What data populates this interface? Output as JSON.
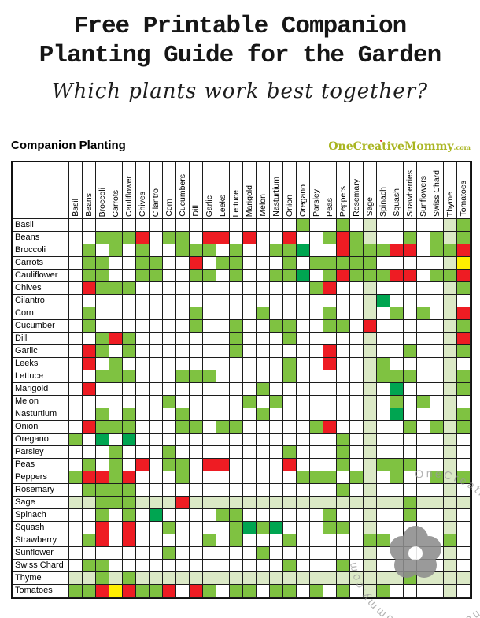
{
  "header": {
    "title_line1": "Free Printable Companion",
    "title_line2": "Planting Guide for the Garden",
    "subtitle": "Which plants work best together?",
    "section_label": "Companion Planting",
    "logo": {
      "name": "OneCreativeMommy",
      "tld": ".com"
    }
  },
  "watermark_text": "OneCreativeMommy.com",
  "chart_data": {
    "type": "heatmap",
    "title": "Companion Planting",
    "legend_position": "none",
    "grid": true,
    "columns": [
      "Basil",
      "Beans",
      "Broccoli",
      "Carrots",
      "Cauliflower",
      "Chives",
      "Cilantro",
      "Corn",
      "Cucumbers",
      "Dill",
      "Garlic",
      "Leeks",
      "Lettuce",
      "Marigold",
      "Melon",
      "Nasturtium",
      "Onion",
      "Oregano",
      "Parsley",
      "Peas",
      "Peppers",
      "Rosemary",
      "Sage",
      "Spinach",
      "Squash",
      "Strawberries",
      "Sunflowers",
      "Swiss Chard",
      "Thyme",
      "Tomatoes"
    ],
    "rows": [
      "Basil",
      "Beans",
      "Broccoli",
      "Carrots",
      "Cauliflower",
      "Chives",
      "Cilantro",
      "Corn",
      "Cucumber",
      "Dill",
      "Garlic",
      "Leeks",
      "Lettuce",
      "Marigold",
      "Melon",
      "Nasturtium",
      "Onion",
      "Oregano",
      "Parsley",
      "Peas",
      "Peppers",
      "Rosemary",
      "Sage",
      "Spinach",
      "Squash",
      "Strawberry",
      "Sunflower",
      "Swiss Chard",
      "Thyme",
      "Tomatoes"
    ],
    "cell_colors": {
      ".": "#ffffff",
      "G": "#7fc241",
      "L": "#dbe9c6",
      "R": "#ee1c23",
      "T": "#00a551",
      "Y": "#ffef00"
    },
    "matrix": [
      ".................G..G.L.....LG",
      "..GGGR.GG.RR.R..R..GRGL..G.GLG",
      ".G.G.G..GGG.G..GGT..RGGGRR.GGR",
      ".GG..GG..R.GG...G.GGGGG.....LY",
      ".GG..GG..GG.G..GGT.GRGGGRR.GGR",
      ".RGGG.............GR..L.....LG",
      "......................LT....L.",
      ".G.......G....G....G..L.G.G.LR",
      ".G.......G..G..GG..GG.R.....LG",
      "..GRG.......G...G.....L.....LR",
      ".RG.G.......G......R..L..G..LG",
      ".R.G............G..R..LG....L.",
      "..GGG...GGG.....G.....LGGG..LG",
      ".R............G.......L.T...LG",
      ".......G.....G.G......L.G.G.L.",
      "..G.G...G.....G.......L.T...LG",
      ".RGGG...GG.GG.....GR..L..G.GLG",
      "G.T.T...............G.L.....L.",
      "...G...G........G...G.L.....L.",
      ".G.G.R.GG.RR....R...G.LGGG..L.",
      "GRRGR...G........GGG.GL.G..GLG",
      ".GGGG...............G.L.....L.",
      "LLGGGLLLRLLLLLLLLLLLLLLLLGLLLL",
      "..G.G.T....GG......G..L..G..L.",
      "..R.R..G....GTGT...GG.L.....L.",
      ".GR.R.....G.G...G.....GG....G.",
      ".......G......G.......L.....L.",
      ".GG.............G...G.L.....L.",
      "LLGLGLLLLLLLLLLLLLLLLLLLLGLLLL",
      "GGRYRGGR.RG.GG.GG.G.G.LG....L."
    ]
  }
}
